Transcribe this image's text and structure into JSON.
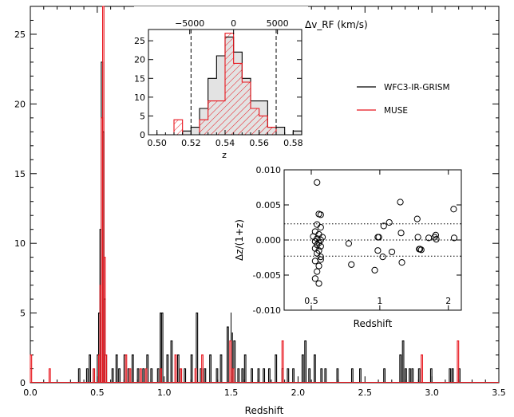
{
  "chart_data": [
    {
      "id": "main",
      "type": "histogram",
      "xlabel": "Redshift",
      "ylabel": "",
      "xlim": [
        0.0,
        3.5
      ],
      "ylim": [
        0,
        27
      ],
      "xticks": [
        "0.0",
        "0.5",
        "1.0",
        "1.5",
        "2.0",
        "2.5",
        "3.0",
        "3.5"
      ],
      "yticks": [
        "0",
        "5",
        "10",
        "15",
        "20",
        "25"
      ],
      "legend": {
        "placement": "upper-right"
      },
      "series": [
        {
          "name": "WFC3-IR-GRISM",
          "color": "#000000",
          "bins": [
            [
              0.5,
              2
            ],
            [
              0.51,
              5
            ],
            [
              0.52,
              11
            ],
            [
              0.53,
              23
            ],
            [
              0.54,
              18
            ],
            [
              0.55,
              6
            ],
            [
              0.56,
              2
            ],
            [
              0.36,
              1
            ],
            [
              0.42,
              1
            ],
            [
              0.44,
              2
            ],
            [
              0.47,
              1
            ],
            [
              0.61,
              1
            ],
            [
              0.64,
              2
            ],
            [
              0.66,
              1
            ],
            [
              0.7,
              2
            ],
            [
              0.73,
              1
            ],
            [
              0.76,
              2
            ],
            [
              0.8,
              1
            ],
            [
              0.84,
              1
            ],
            [
              0.87,
              2
            ],
            [
              0.9,
              1
            ],
            [
              0.95,
              1
            ],
            [
              0.97,
              5
            ],
            [
              0.98,
              5
            ],
            [
              1.02,
              2
            ],
            [
              1.05,
              3
            ],
            [
              1.1,
              2
            ],
            [
              1.12,
              1
            ],
            [
              1.15,
              1
            ],
            [
              1.2,
              2
            ],
            [
              1.24,
              5
            ],
            [
              1.27,
              1
            ],
            [
              1.3,
              1
            ],
            [
              1.34,
              2
            ],
            [
              1.39,
              1
            ],
            [
              1.42,
              2
            ],
            [
              1.47,
              4
            ],
            [
              1.5,
              5
            ],
            [
              1.52,
              3
            ],
            [
              1.55,
              1
            ],
            [
              1.58,
              1
            ],
            [
              1.6,
              2
            ],
            [
              1.65,
              1
            ],
            [
              1.7,
              1
            ],
            [
              1.74,
              1
            ],
            [
              1.78,
              1
            ],
            [
              1.83,
              2
            ],
            [
              1.88,
              1
            ],
            [
              1.92,
              1
            ],
            [
              1.96,
              1
            ],
            [
              2.03,
              2
            ],
            [
              2.05,
              3
            ],
            [
              2.08,
              1
            ],
            [
              2.12,
              2
            ],
            [
              2.17,
              1
            ],
            [
              2.2,
              1
            ],
            [
              2.29,
              1
            ],
            [
              2.4,
              1
            ],
            [
              2.46,
              1
            ],
            [
              2.64,
              1
            ],
            [
              2.76,
              2
            ],
            [
              2.78,
              3
            ],
            [
              2.8,
              1
            ],
            [
              2.83,
              1
            ],
            [
              2.85,
              1
            ],
            [
              2.9,
              1
            ],
            [
              2.99,
              1
            ],
            [
              3.13,
              1
            ],
            [
              3.15,
              1
            ],
            [
              3.2,
              1
            ]
          ]
        },
        {
          "name": "MUSE",
          "color": "#e8141c",
          "bins": [
            [
              0.0,
              2
            ],
            [
              0.14,
              1
            ],
            [
              0.47,
              1
            ],
            [
              0.51,
              2
            ],
            [
              0.52,
              7
            ],
            [
              0.53,
              19
            ],
            [
              0.54,
              27
            ],
            [
              0.55,
              9
            ],
            [
              0.56,
              2
            ],
            [
              0.71,
              2
            ],
            [
              0.74,
              1
            ],
            [
              0.82,
              1
            ],
            [
              0.86,
              1
            ],
            [
              0.97,
              1
            ],
            [
              1.08,
              2
            ],
            [
              1.12,
              1
            ],
            [
              1.23,
              1
            ],
            [
              1.28,
              2
            ],
            [
              1.49,
              3
            ],
            [
              1.51,
              1
            ],
            [
              1.88,
              3
            ],
            [
              2.92,
              2
            ],
            [
              3.19,
              3
            ]
          ]
        }
      ]
    },
    {
      "id": "inset-histogram",
      "type": "histogram",
      "xlabel": "z",
      "top_axis_label": "Δv_RF (km/s)",
      "xlim": [
        0.495,
        0.585
      ],
      "ylim": [
        0,
        28
      ],
      "xticks": [
        "0.50",
        "0.52",
        "0.54",
        "0.56",
        "0.58"
      ],
      "yticks": [
        "0",
        "5",
        "10",
        "15",
        "20",
        "25"
      ],
      "top_ticks": [
        "−5000",
        "0",
        "5000"
      ],
      "top_tick_values": [
        -5000,
        0,
        5000
      ],
      "dashed_lines_z": [
        0.52,
        0.57
      ],
      "bin_edges": [
        0.5,
        0.505,
        0.51,
        0.515,
        0.52,
        0.525,
        0.53,
        0.535,
        0.54,
        0.545,
        0.55,
        0.555,
        0.56,
        0.565,
        0.57,
        0.575,
        0.58,
        0.585
      ],
      "series": [
        {
          "name": "WFC3-IR-GRISM",
          "color": "#000000",
          "fill": "#e3e3e3",
          "values": [
            0,
            0,
            0,
            1,
            2,
            7,
            15,
            21,
            26,
            22,
            15,
            9,
            9,
            2,
            2,
            0,
            1
          ]
        },
        {
          "name": "MUSE",
          "color": "#e8141c",
          "hatch": true,
          "values": [
            0,
            0,
            4,
            0,
            0,
            4,
            9,
            9,
            27,
            19,
            14,
            7,
            5,
            2,
            0,
            0,
            0
          ]
        }
      ]
    },
    {
      "id": "inset-scatter",
      "type": "scatter",
      "xlabel": "Redshift",
      "ylabel": "Δz/(1+z)",
      "xlim": [
        0.38,
        2.28
      ],
      "ylim": [
        -0.01,
        0.01
      ],
      "xticks": [
        "0.5",
        "1",
        "2"
      ],
      "xtick_values": [
        0.5,
        1.0,
        2.0
      ],
      "xscale": "log",
      "yticks": [
        "0.010",
        "0.005",
        "0.000",
        "-0.005",
        "-0.010"
      ],
      "ytick_values": [
        0.01,
        0.005,
        0.0,
        -0.005,
        -0.01
      ],
      "dotted_lines_y": [
        0.0023,
        0.0,
        -0.0023
      ],
      "points": [
        [
          0.53,
          0.0082
        ],
        [
          0.54,
          0.0037
        ],
        [
          0.55,
          0.0036
        ],
        [
          0.53,
          0.0022
        ],
        [
          0.55,
          0.0018
        ],
        [
          0.52,
          0.0012
        ],
        [
          0.54,
          0.0008
        ],
        [
          0.51,
          0.0005
        ],
        [
          0.56,
          0.0004
        ],
        [
          0.53,
          0.0002
        ],
        [
          0.55,
          0.0
        ],
        [
          0.52,
          -0.0002
        ],
        [
          0.54,
          -0.0004
        ],
        [
          0.53,
          -0.0007
        ],
        [
          0.55,
          -0.0009
        ],
        [
          0.52,
          -0.0012
        ],
        [
          0.54,
          -0.0015
        ],
        [
          0.53,
          -0.0019
        ],
        [
          0.55,
          -0.0024
        ],
        [
          0.52,
          -0.003
        ],
        [
          0.54,
          -0.0037
        ],
        [
          0.53,
          -0.0045
        ],
        [
          0.52,
          -0.0055
        ],
        [
          0.54,
          -0.0062
        ],
        [
          0.55,
          -0.0028
        ],
        [
          0.73,
          -0.0005
        ],
        [
          0.75,
          -0.0035
        ],
        [
          0.95,
          -0.0043
        ],
        [
          0.98,
          0.0004
        ],
        [
          0.99,
          0.0004
        ],
        [
          0.98,
          -0.0015
        ],
        [
          1.03,
          -0.0024
        ],
        [
          1.04,
          0.002
        ],
        [
          1.1,
          0.0025
        ],
        [
          1.13,
          -0.0017
        ],
        [
          1.23,
          0.0054
        ],
        [
          1.24,
          0.001
        ],
        [
          1.25,
          -0.0032
        ],
        [
          1.46,
          0.003
        ],
        [
          1.47,
          0.0004
        ],
        [
          1.49,
          -0.0013
        ],
        [
          1.5,
          -0.0013
        ],
        [
          1.52,
          -0.0014
        ],
        [
          1.64,
          0.0003
        ],
        [
          1.74,
          0.0004
        ],
        [
          1.76,
          0.0007
        ],
        [
          1.77,
          0.0001
        ],
        [
          2.11,
          0.0044
        ],
        [
          2.12,
          0.0003
        ]
      ]
    }
  ]
}
